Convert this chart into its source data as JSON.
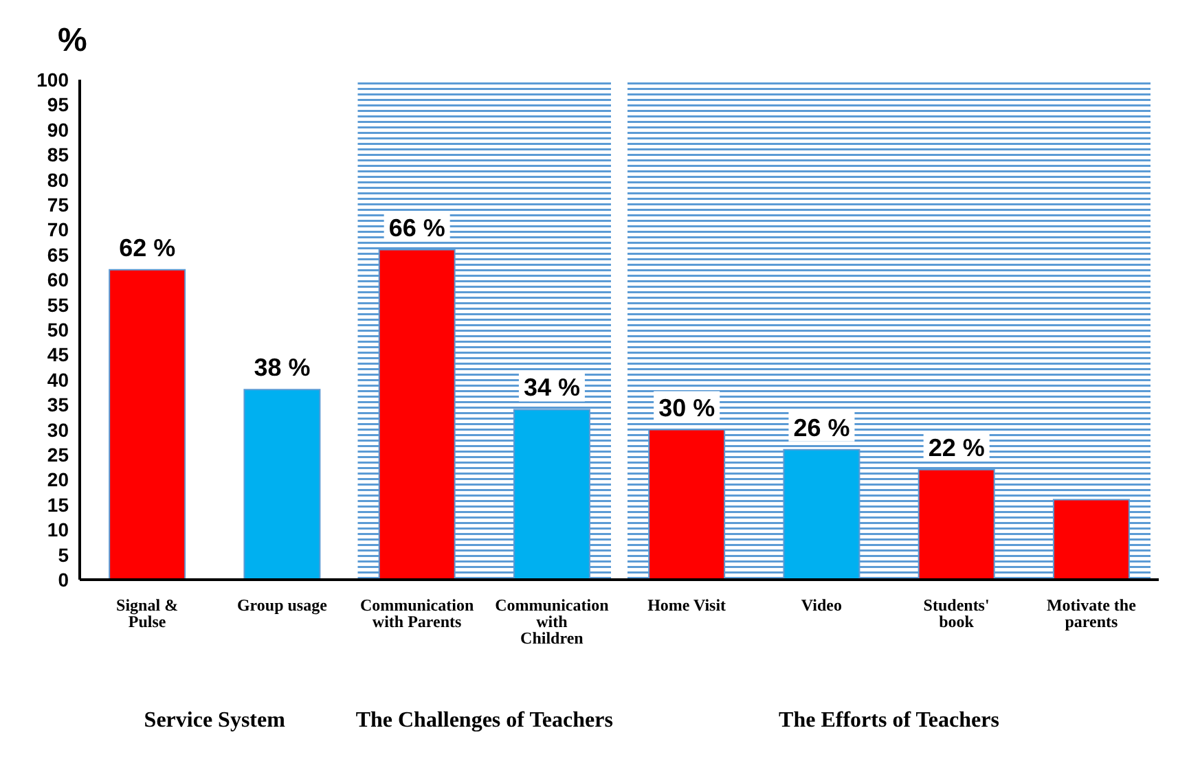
{
  "chart_data": {
    "type": "bar",
    "ylabel": "%",
    "categories": [
      "Signal & Pulse",
      "Group usage",
      "Communication with Parents",
      "Communication with Children",
      "Home Visit",
      "Video",
      "Students' book",
      "Motivate the parents"
    ],
    "values": [
      62,
      38,
      66,
      34,
      30,
      26,
      22,
      16
    ],
    "colors": [
      "#ff0000",
      "#00b0f0",
      "#ff0000",
      "#00b0f0",
      "#ff0000",
      "#00b0f0",
      "#ff0000",
      "#ff0000"
    ],
    "value_labels": [
      "62 %",
      "38 %",
      "66 %",
      "34 %",
      "30 %",
      "26 %",
      "22 %",
      null
    ],
    "ylim": [
      0,
      100
    ],
    "yticks": [
      0,
      5,
      10,
      15,
      20,
      25,
      30,
      35,
      40,
      45,
      50,
      55,
      60,
      65,
      70,
      75,
      80,
      85,
      90,
      95,
      100
    ],
    "grid": false,
    "legend": false,
    "bands": [
      {
        "axis": "x",
        "from": "Communication with Parents",
        "to": "Communication with Children",
        "color": "#5b9bd5"
      },
      {
        "axis": "x",
        "from": "Home Visit",
        "to": "Motivate the parents",
        "color": "#5b9bd5"
      }
    ],
    "annotations": [
      "Service System",
      "The Challenges of Teachers",
      "The Efforts of Teachers"
    ]
  }
}
